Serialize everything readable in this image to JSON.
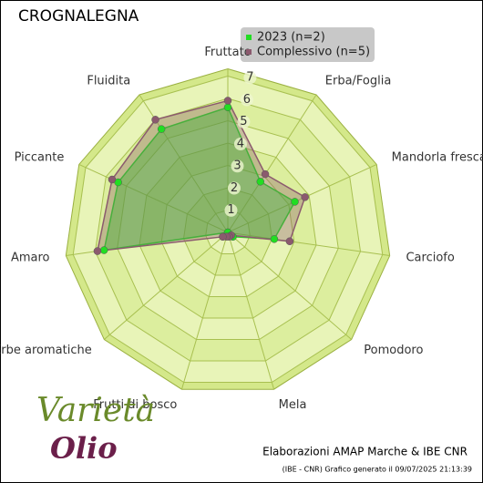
{
  "chart_data": {
    "type": "radar",
    "title": "CROGNALEGNA",
    "categories": [
      "Fruttato",
      "Erba/Foglia",
      "Mandorla fresca",
      "Carciofo",
      "Pomodoro",
      "Mela",
      "Frutti di bosco",
      "Erbe aromatiche",
      "Amaro",
      "Piccante",
      "Fluidita"
    ],
    "series": [
      {
        "name": "2023 (n=2)",
        "color": "#22dd22",
        "values": [
          5.6,
          2.7,
          3.3,
          2.1,
          0.3,
          0.1,
          0,
          0,
          5.6,
          5.4,
          5.5
        ]
      },
      {
        "name": "Complessivo (n=5)",
        "color": "#8b5a6e",
        "values": [
          5.9,
          3.1,
          3.8,
          2.8,
          0.2,
          0.2,
          0.2,
          0.3,
          5.9,
          5.7,
          6.0
        ]
      }
    ],
    "rlim": [
      0,
      7
    ],
    "rticks": [
      1,
      2,
      3,
      4,
      5,
      6,
      7
    ],
    "footer": "Elaborazioni AMAP Marche & IBE CNR",
    "footnote": "(IBE - CNR) Grafico generato il 09/07/2025 21:13:39",
    "logo": {
      "line1": "Varietà",
      "line2": "Olio"
    }
  }
}
